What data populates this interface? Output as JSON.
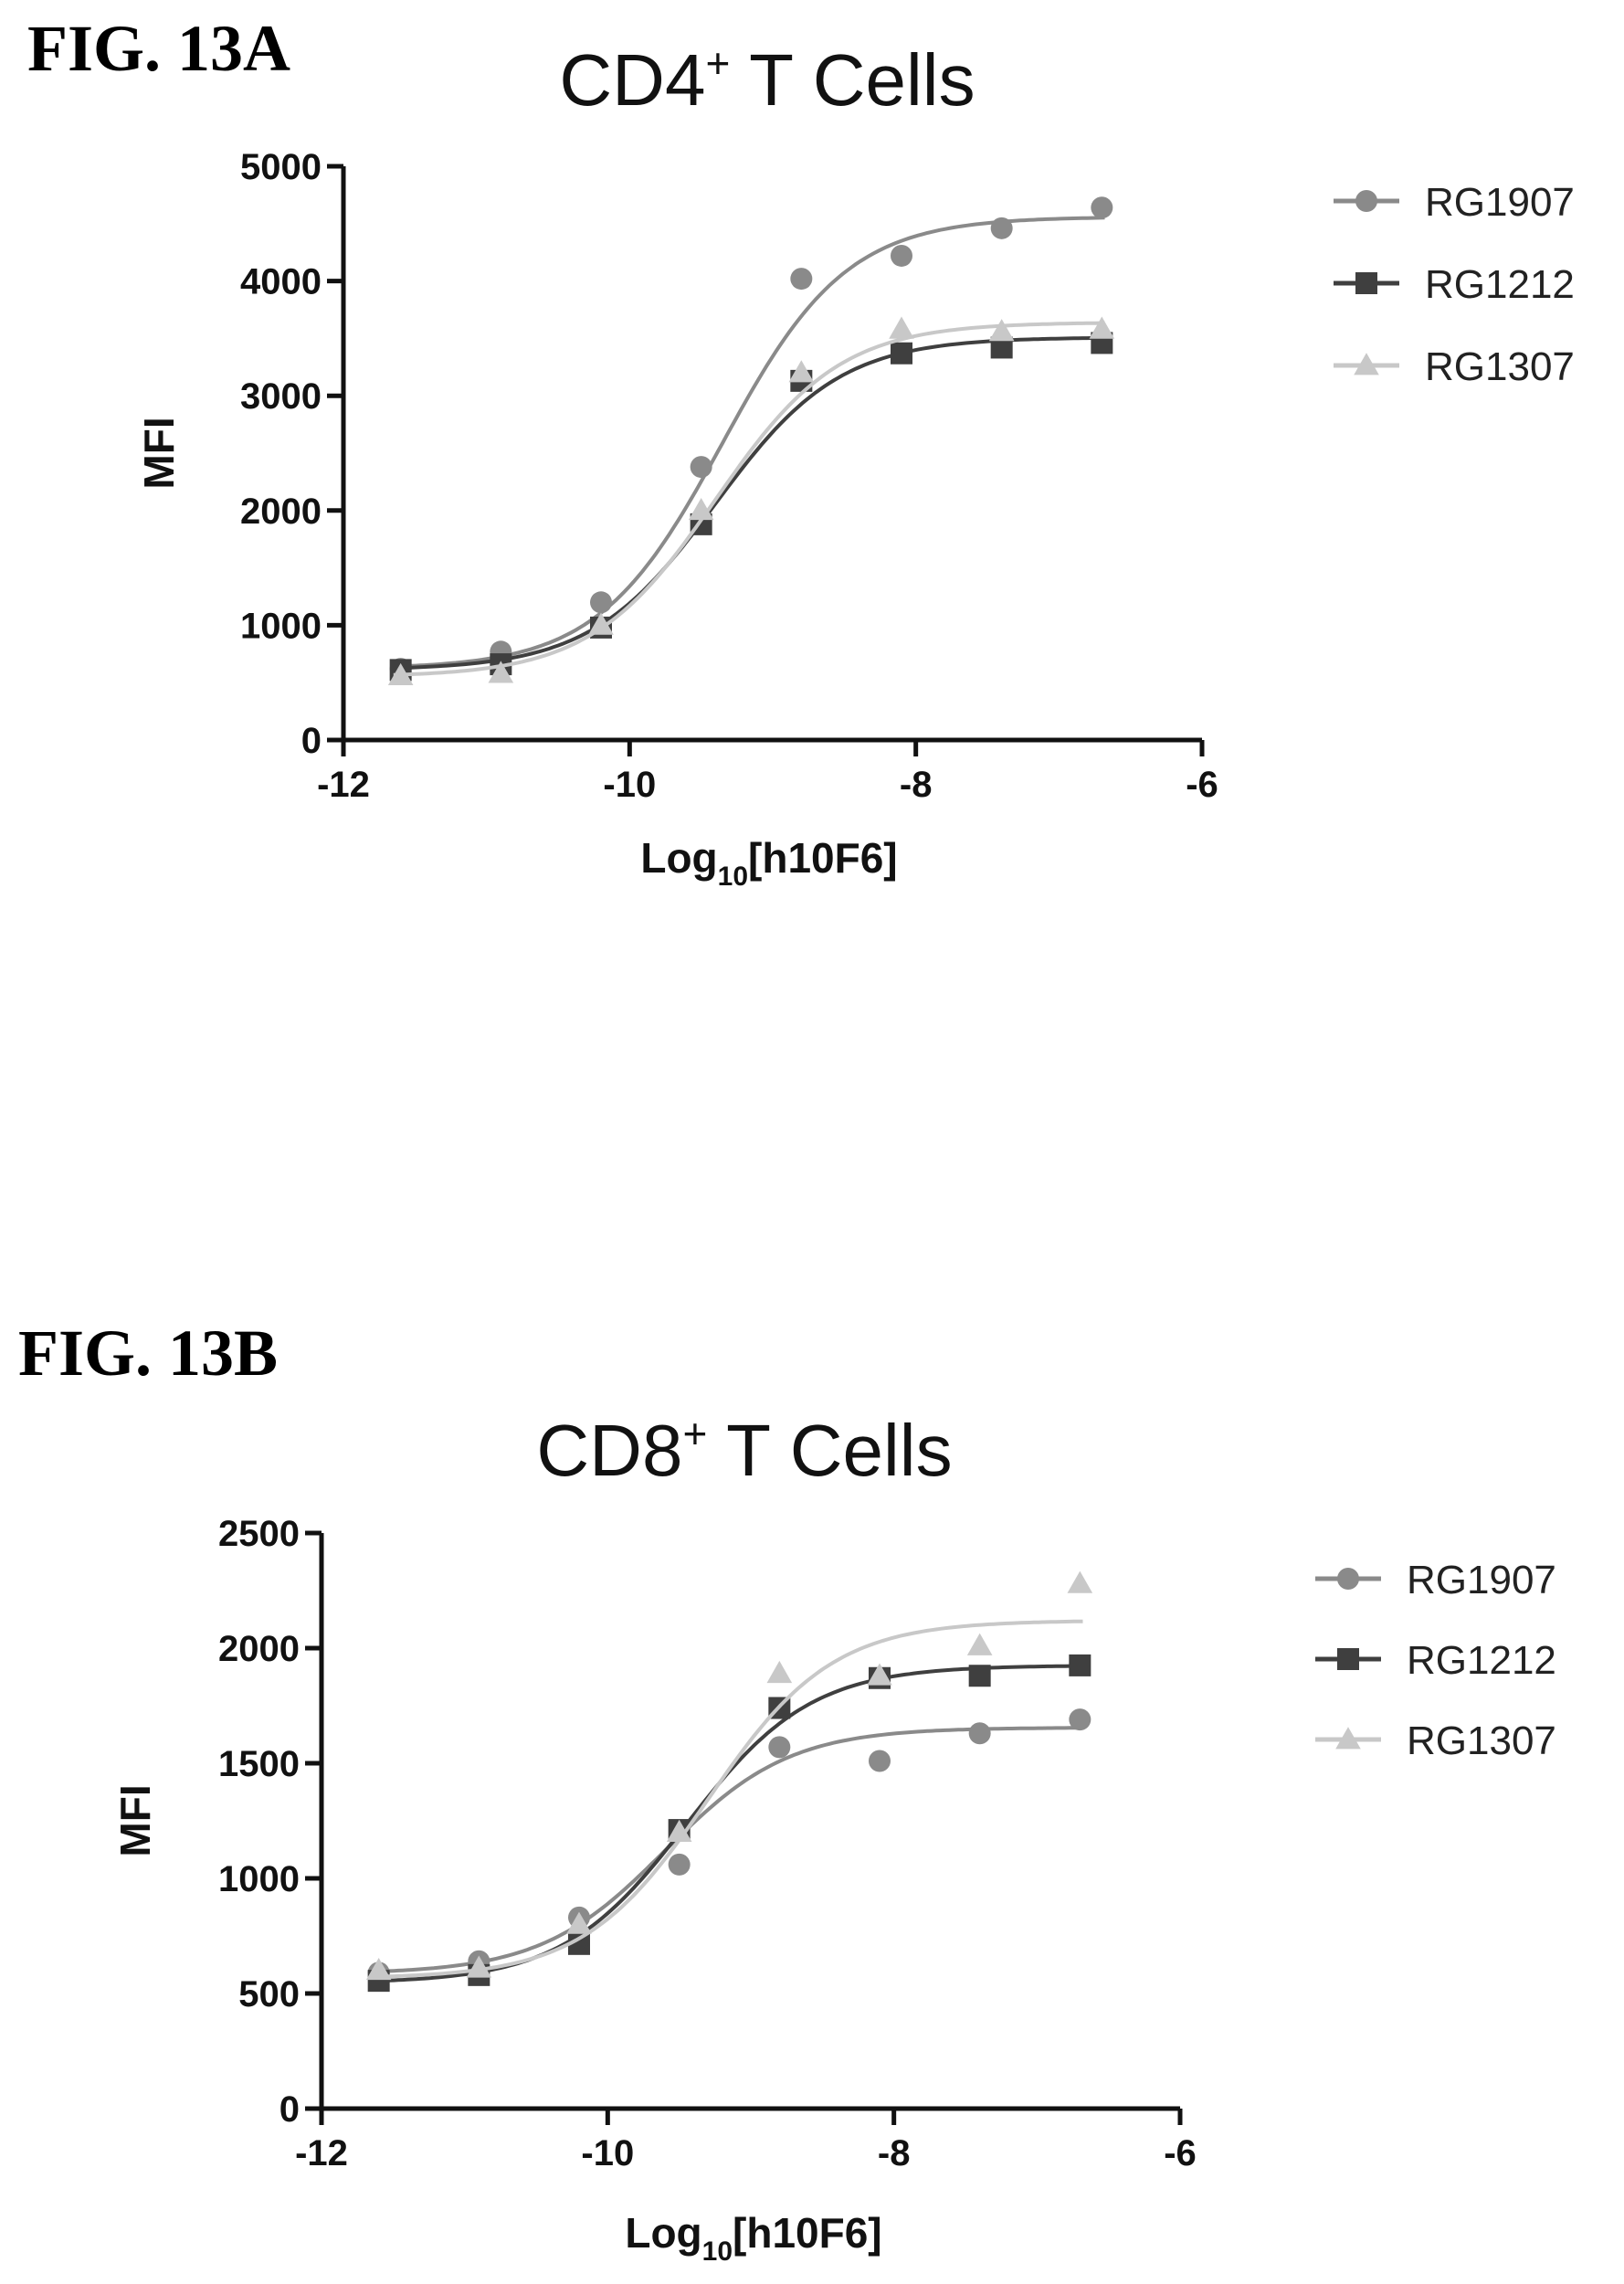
{
  "figures": [
    {
      "label": "FIG. 13A"
    },
    {
      "label": "FIG. 13B"
    }
  ],
  "chart_data": [
    {
      "type": "scatter",
      "title": "CD4",
      "title_superscript": "+",
      "title_suffix": " T Cells",
      "xlabel": "Log",
      "xlabel_sub": "10",
      "xlabel_suffix": "[h10F6]",
      "ylabel": "MFI",
      "xlim": [
        -12,
        -6
      ],
      "ylim": [
        0,
        5000
      ],
      "x_ticks": [
        -12,
        -10,
        -8,
        -6
      ],
      "y_ticks": [
        0,
        1000,
        2000,
        3000,
        4000,
        5000
      ],
      "x_tick_labels": [
        "-12",
        "-10",
        "-8",
        "-6"
      ],
      "y_tick_labels": [
        "0",
        "1000",
        "2000",
        "3000",
        "4000",
        "5000"
      ],
      "legend_position": "right",
      "grid": false,
      "x": [
        -11.6,
        -10.9,
        -10.2,
        -9.5,
        -8.8,
        -8.1,
        -7.4,
        -6.7
      ],
      "series": [
        {
          "name": "RG1907",
          "marker": "circle",
          "color": "#8a8a8a",
          "values": [
            620,
            770,
            1200,
            2380,
            4020,
            4220,
            4460,
            4640
          ],
          "fit": {
            "bottom": 620,
            "top": 4560,
            "logEC50": -9.35,
            "hill": 1.0
          }
        },
        {
          "name": "RG1212",
          "marker": "square",
          "color": "#3f3f3f",
          "values": [
            610,
            660,
            980,
            1880,
            3130,
            3370,
            3420,
            3460
          ],
          "fit": {
            "bottom": 610,
            "top": 3510,
            "logEC50": -9.4,
            "hill": 1.0
          }
        },
        {
          "name": "RG1307",
          "marker": "triangle",
          "color": "#c8c8c8",
          "values": [
            560,
            580,
            1000,
            2000,
            3200,
            3580,
            3560,
            3580
          ],
          "fit": {
            "bottom": 550,
            "top": 3640,
            "logEC50": -9.4,
            "hill": 1.0
          }
        }
      ]
    },
    {
      "type": "scatter",
      "title": "CD8",
      "title_superscript": "+",
      "title_suffix": " T Cells",
      "xlabel": "Log",
      "xlabel_sub": "10",
      "xlabel_suffix": "[h10F6]",
      "ylabel": "MFI",
      "xlim": [
        -12,
        -6
      ],
      "ylim": [
        0,
        2500
      ],
      "x_ticks": [
        -12,
        -10,
        -8,
        -6
      ],
      "y_ticks": [
        0,
        500,
        1000,
        1500,
        2000,
        2500
      ],
      "x_tick_labels": [
        "-12",
        "-10",
        "-8",
        "-6"
      ],
      "y_tick_labels": [
        "0",
        "500",
        "1000",
        "1500",
        "2000",
        "2500"
      ],
      "legend_position": "right",
      "grid": false,
      "x": [
        -11.6,
        -10.9,
        -10.2,
        -9.5,
        -8.8,
        -8.1,
        -7.4,
        -6.7
      ],
      "series": [
        {
          "name": "RG1907",
          "marker": "circle",
          "color": "#8a8a8a",
          "values": [
            590,
            640,
            830,
            1060,
            1570,
            1510,
            1630,
            1690
          ],
          "fit": {
            "bottom": 585,
            "top": 1655,
            "logEC50": -9.6,
            "hill": 1.0
          }
        },
        {
          "name": "RG1212",
          "marker": "square",
          "color": "#3f3f3f",
          "values": [
            555,
            580,
            715,
            1210,
            1740,
            1870,
            1880,
            1925
          ],
          "fit": {
            "bottom": 545,
            "top": 1925,
            "logEC50": -9.45,
            "hill": 1.0
          }
        },
        {
          "name": "RG1307",
          "marker": "triangle",
          "color": "#c8c8c8",
          "values": [
            600,
            610,
            800,
            1200,
            1890,
            1880,
            2010,
            2280
          ],
          "fit": {
            "bottom": 565,
            "top": 2120,
            "logEC50": -9.3,
            "hill": 1.0
          }
        }
      ]
    }
  ]
}
